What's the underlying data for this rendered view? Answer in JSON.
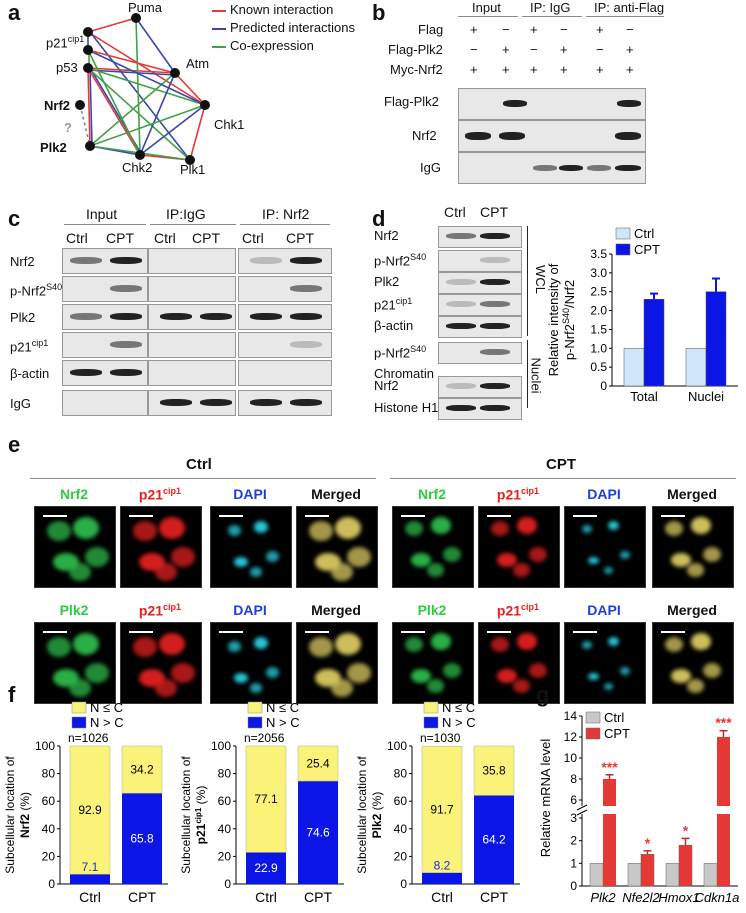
{
  "panel_labels": {
    "a": "a",
    "b": "b",
    "c": "c",
    "d": "d",
    "e": "e",
    "f": "f",
    "g": "g"
  },
  "panel_a": {
    "nodes": [
      "Puma",
      "p21",
      "cip1",
      "p53",
      "Atm",
      "Nrf2",
      "Chk1",
      "?",
      "Plk2",
      "Chk2",
      "Plk1"
    ],
    "legend": [
      {
        "label": "Known interaction",
        "color": "#e53935"
      },
      {
        "label": "Predicted interactions",
        "color": "#3949ab"
      },
      {
        "label": "Co-expression",
        "color": "#43a047"
      }
    ]
  },
  "panel_b": {
    "headers": [
      "Input",
      "IP: IgG",
      "IP: anti-Flag"
    ],
    "rows": [
      {
        "label": "Flag",
        "signs": [
          "+",
          "−",
          "+",
          "−",
          "+",
          "−"
        ]
      },
      {
        "label": "Flag-Plk2",
        "signs": [
          "−",
          "+",
          "−",
          "+",
          "−",
          "+"
        ]
      },
      {
        "label": "Myc-Nrf2",
        "signs": [
          "+",
          "+",
          "+",
          "+",
          "+",
          "+"
        ]
      }
    ],
    "blots": [
      "Flag-Plk2",
      "Nrf2",
      "IgG"
    ]
  },
  "panel_c": {
    "headers": [
      "Input",
      "IP:IgG",
      "IP: Nrf2"
    ],
    "lanes": [
      "Ctrl",
      "CPT",
      "Ctrl",
      "CPT",
      "Ctrl",
      "CPT"
    ],
    "blots": [
      "Nrf2",
      "p-Nrf2",
      "S40",
      "Plk2",
      "p21",
      "cip1",
      "β-actin",
      "IgG"
    ]
  },
  "panel_d": {
    "lanes": [
      "Ctrl",
      "CPT"
    ],
    "wcl_blots": [
      "Nrf2",
      "p-Nrf2",
      "S40",
      "Plk2",
      "p21",
      "cip1",
      "β-actin"
    ],
    "nuclei_blots": [
      "p-Nrf2",
      "S40",
      "Chromatin",
      "Nrf2",
      "Histone H1"
    ],
    "side_labels": [
      "WCL",
      "Nuclei"
    ],
    "chart_data": {
      "type": "bar",
      "categories": [
        "Total",
        "Nuclei"
      ],
      "series": [
        {
          "name": "Ctrl",
          "values": [
            1.0,
            1.0
          ],
          "color": "#cfe6fb"
        },
        {
          "name": "CPT",
          "values": [
            2.3,
            2.5
          ],
          "color": "#0b16e6"
        }
      ],
      "errors": [
        0.15,
        0.35
      ],
      "ylabel_a": "Relative intensity of",
      "ylabel_b": "p-Nrf2",
      "ylabel_sup": "S40",
      "ylabel_c": "/Nrf2",
      "ylim": [
        0,
        3.5
      ],
      "yticks": [
        "0",
        "0.5",
        "1.0",
        "1.5",
        "2.0",
        "2.5",
        "3.0",
        "3.5"
      ]
    }
  },
  "panel_e": {
    "group_titles": [
      "Ctrl",
      "CPT"
    ],
    "row1_channels": [
      {
        "name": "Nrf2",
        "color": "#2ecc40"
      },
      {
        "name": "p21",
        "sup": "cip1",
        "color": "#e8201e"
      },
      {
        "name": "DAPI",
        "color": "#1f3fd6"
      },
      {
        "name": "Merged",
        "color": "#111111"
      }
    ],
    "row2_channels": [
      {
        "name": "Plk2",
        "color": "#2ecc40"
      },
      {
        "name": "p21",
        "sup": "cip1",
        "color": "#e8201e"
      },
      {
        "name": "DAPI",
        "color": "#1f3fd6"
      },
      {
        "name": "Merged",
        "color": "#111111"
      }
    ]
  },
  "panel_f": {
    "legend": [
      "N ≤ C",
      "N > C"
    ],
    "charts": [
      {
        "n": "n=1026",
        "ylabel": "Subcellular location of",
        "protein": "Nrf2",
        "sup": "",
        "unit": "(%)",
        "categories": [
          "Ctrl",
          "CPT"
        ],
        "yellow": [
          92.9,
          34.2
        ],
        "blue": [
          7.1,
          65.8
        ],
        "yellow_labels": [
          "92.9",
          "34.2"
        ],
        "blue_labels": [
          "7.1",
          "65.8"
        ]
      },
      {
        "n": "n=2056",
        "ylabel": "Subcellular location of",
        "protein": "p21",
        "sup": "cip1",
        "unit": "(%)",
        "categories": [
          "Ctrl",
          "CPT"
        ],
        "yellow": [
          77.1,
          25.4
        ],
        "blue": [
          22.9,
          74.6
        ],
        "yellow_labels": [
          "77.1",
          "25.4"
        ],
        "blue_labels": [
          "22.9",
          "74.6"
        ]
      },
      {
        "n": "n=1030",
        "ylabel": "Subcellular location of",
        "protein": "Plk2",
        "sup": "",
        "unit": "(%)",
        "categories": [
          "Ctrl",
          "CPT"
        ],
        "yellow": [
          91.7,
          35.8
        ],
        "blue": [
          8.2,
          64.2
        ],
        "yellow_labels": [
          "91.7",
          "35.8"
        ],
        "blue_labels": [
          "8.2",
          "64.2"
        ]
      }
    ],
    "yticks": [
      "0",
      "20",
      "40",
      "60",
      "80",
      "100"
    ],
    "colors": {
      "yellow": "#fbf27a",
      "blue": "#0b16e6"
    }
  },
  "panel_g": {
    "chart_data": {
      "type": "bar",
      "categories": [
        "Plk2",
        "Nfe2l2",
        "Hmox1",
        "Cdkn1a"
      ],
      "series": [
        {
          "name": "Ctrl",
          "values": [
            1.0,
            1.0,
            1.0,
            1.0
          ],
          "color": "#c8c8c8"
        },
        {
          "name": "CPT",
          "values": [
            8.0,
            1.4,
            1.8,
            12.0
          ],
          "color": "#e53935"
        }
      ],
      "errors": [
        0.4,
        0.15,
        0.3,
        0.6
      ],
      "significance": [
        "***",
        "*",
        "*",
        "***"
      ],
      "ylabel": "Relative mRNA level",
      "yticks_low": [
        "0",
        "1",
        "2",
        "3"
      ],
      "yticks_high": [
        "6",
        "8",
        "10",
        "12",
        "14"
      ]
    }
  }
}
